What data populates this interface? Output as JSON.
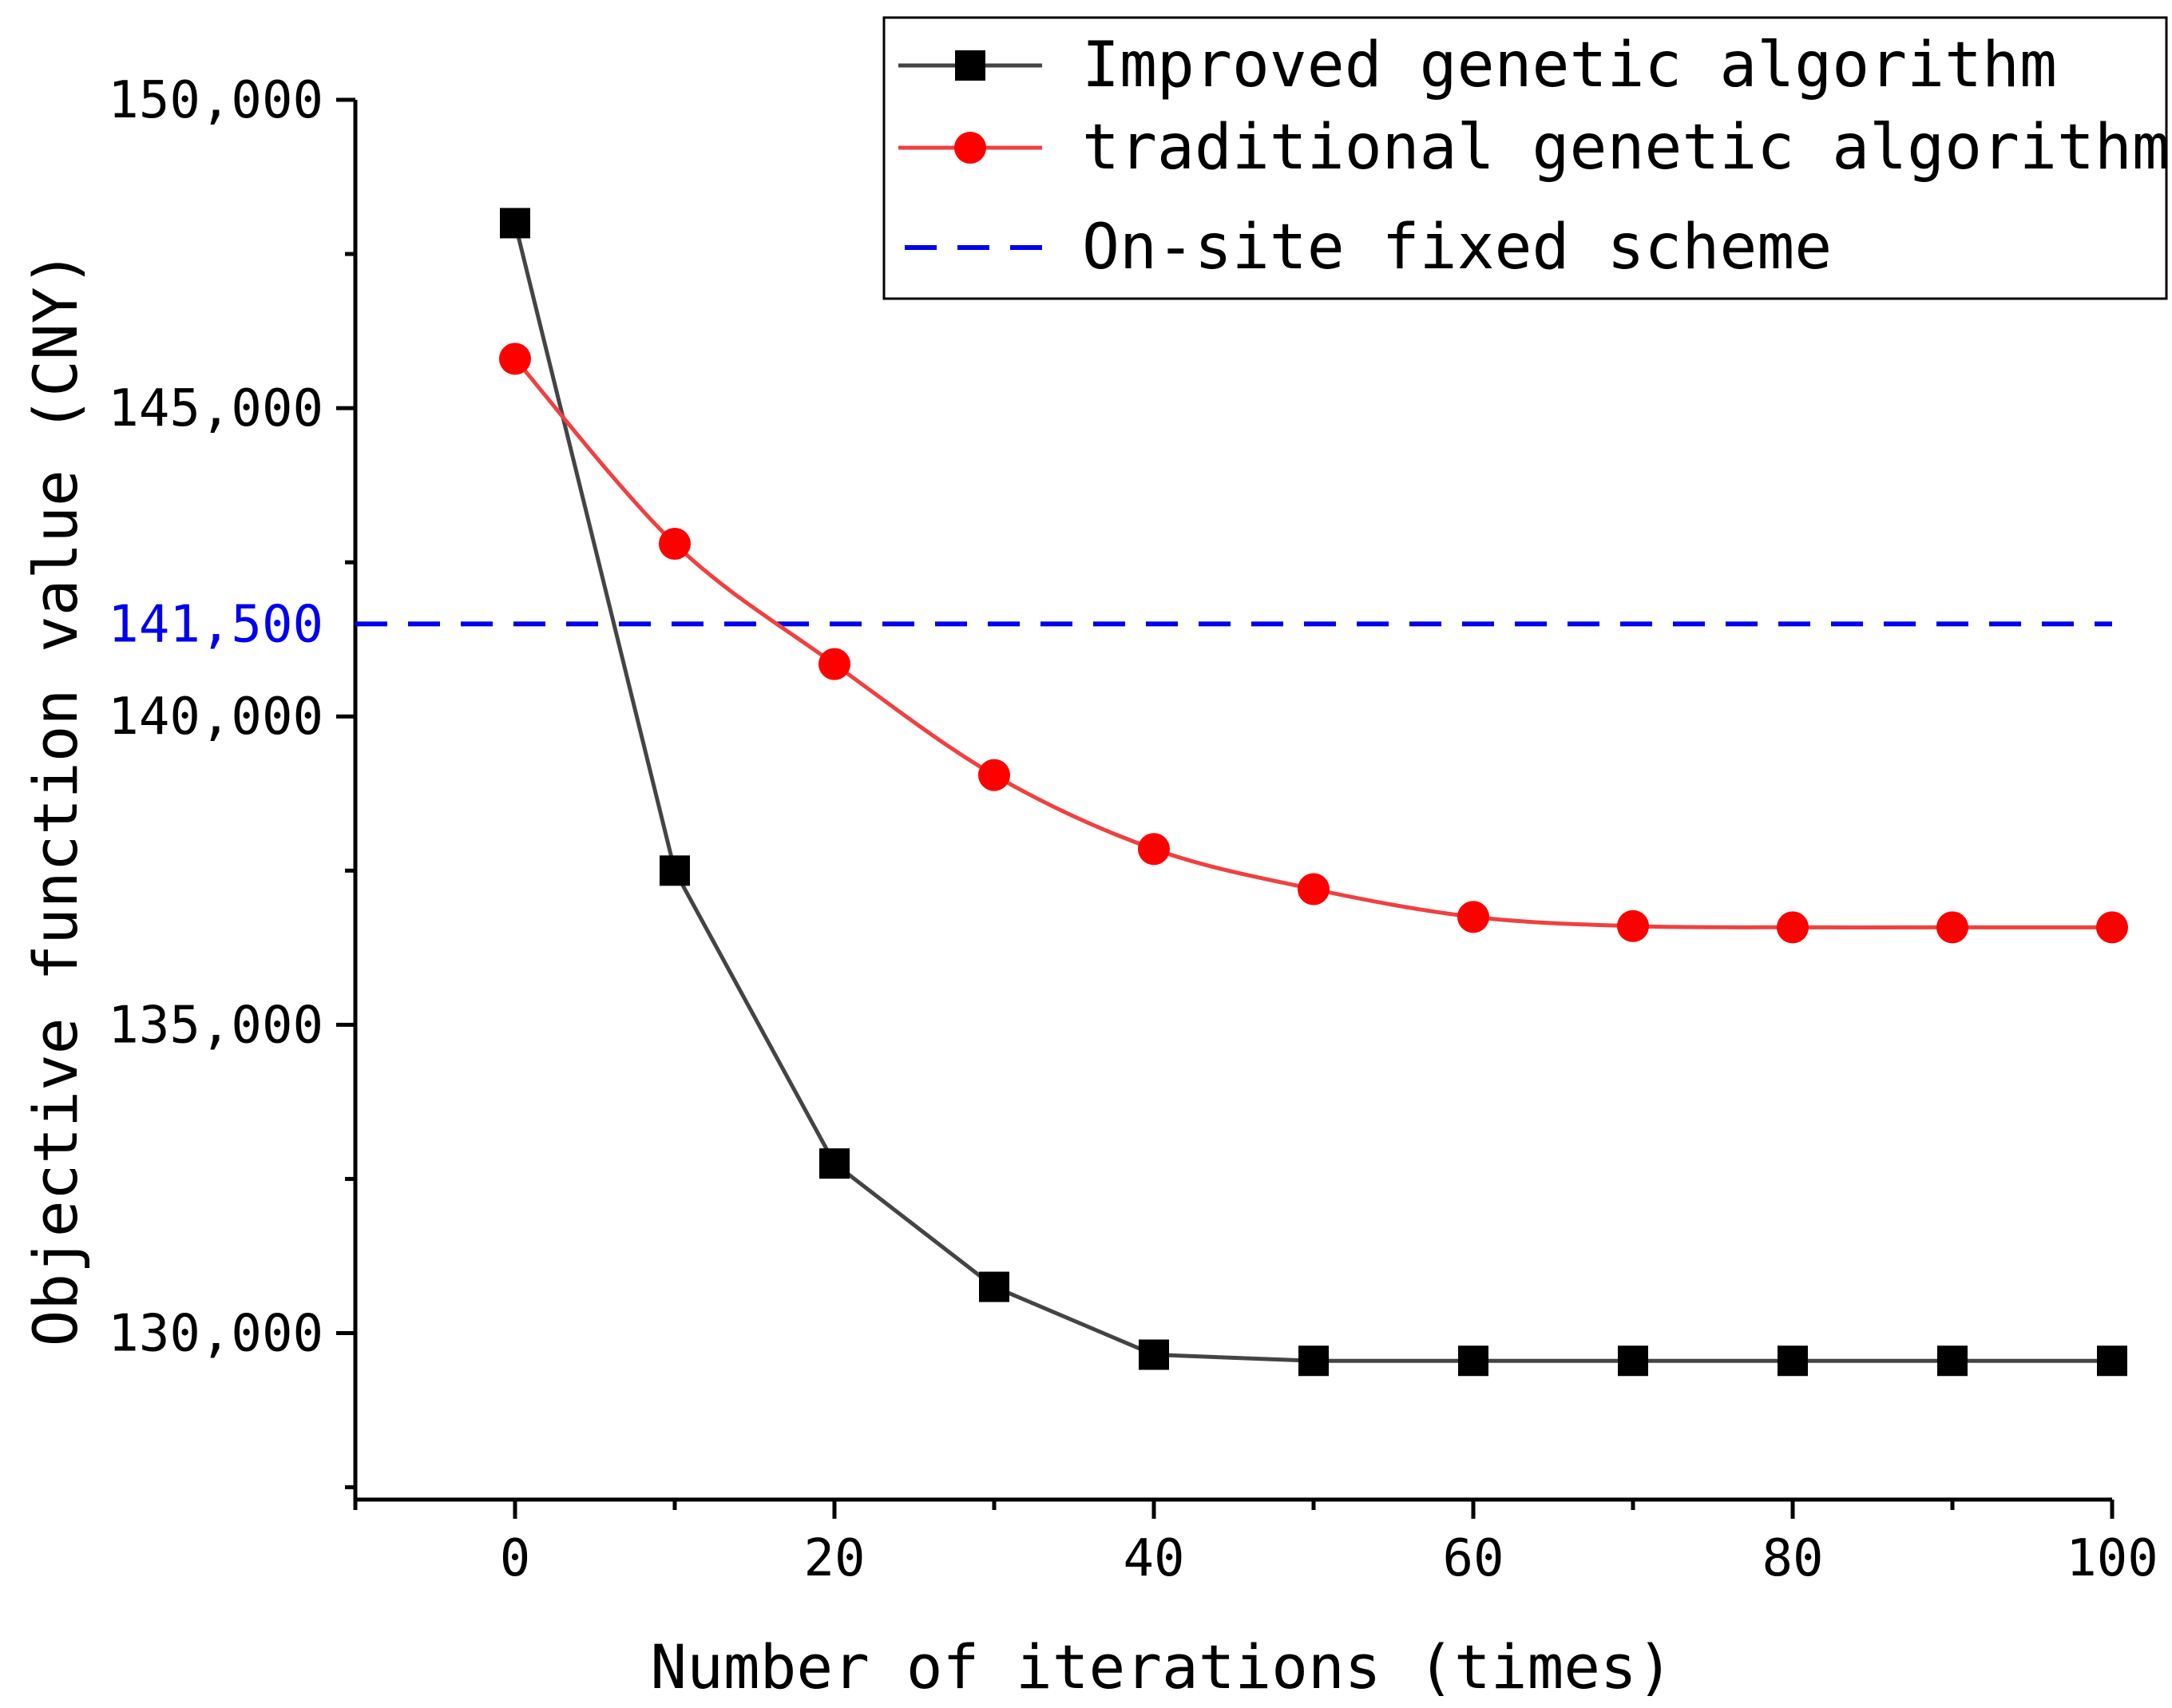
{
  "chart_data": {
    "type": "line",
    "title": "",
    "xlabel": "Number of iterations (times)",
    "ylabel": "Objective function value (CNY)",
    "xlim": [
      -10,
      100
    ],
    "ylim": [
      127300,
      150000
    ],
    "x_ticks": [
      0,
      20,
      40,
      60,
      80,
      100
    ],
    "x_tick_labels": [
      "0",
      "20",
      "40",
      "60",
      "80",
      "100"
    ],
    "y_ticks": [
      130000,
      135000,
      140000,
      145000,
      150000
    ],
    "y_tick_labels": [
      "130,000",
      "135,000",
      "140,000",
      "145,000",
      "150,000"
    ],
    "reference_line": {
      "name": "On-site fixed scheme",
      "value": 141500,
      "label": "141,500",
      "color": "#0000ee"
    },
    "x": [
      0,
      10,
      20,
      30,
      40,
      50,
      60,
      70,
      80,
      90,
      100
    ],
    "series": [
      {
        "name": "Improved genetic algorithm",
        "marker": "square",
        "line_color": "#444444",
        "marker_color": "#000000",
        "values": [
          148000,
          137500,
          132750,
          130750,
          129650,
          129550,
          129550,
          129550,
          129550,
          129550,
          129550
        ]
      },
      {
        "name": "traditional genetic algorithm",
        "marker": "circle",
        "line_color": "#f04040",
        "marker_color": "#ff0000",
        "values": [
          145800,
          142800,
          140850,
          139050,
          137850,
          137200,
          136750,
          136600,
          136580,
          136580,
          136580
        ]
      }
    ],
    "legend_position": "top-right",
    "grid": false
  }
}
